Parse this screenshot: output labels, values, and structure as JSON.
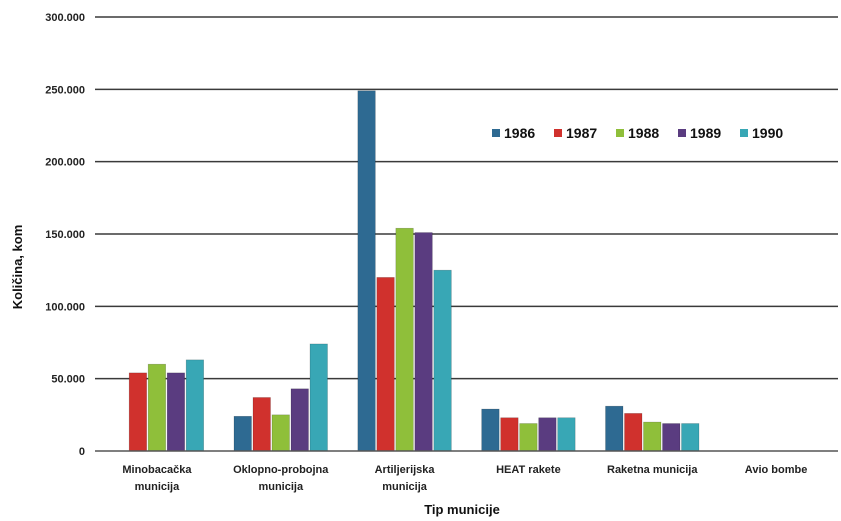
{
  "chart_data": {
    "type": "bar",
    "title": "",
    "xlabel": "Tip municije",
    "ylabel": "Količina, kom",
    "ylim": [
      0,
      300000
    ],
    "y_ticks": [
      "0",
      "50.000",
      "100.000",
      "150.000",
      "200.000",
      "250.000",
      "300.000"
    ],
    "y_tick_values": [
      0,
      50000,
      100000,
      150000,
      200000,
      250000,
      300000
    ],
    "categories": [
      [
        "Minobacačka",
        "municija"
      ],
      [
        "Oklopno-probojna",
        "municija"
      ],
      [
        "Artiljerijska",
        "municija"
      ],
      [
        "HEAT rakete"
      ],
      [
        "Raketna municija"
      ],
      [
        "Avio bombe"
      ]
    ],
    "legend_position": "top-right",
    "grid": true,
    "series": [
      {
        "name": "1986",
        "color": "#2e6a92",
        "values": [
          0,
          24000,
          249000,
          29000,
          31000,
          0
        ]
      },
      {
        "name": "1987",
        "color": "#d0312d",
        "values": [
          54000,
          37000,
          120000,
          23000,
          26000,
          0
        ]
      },
      {
        "name": "1988",
        "color": "#8fbf3a",
        "values": [
          60000,
          25000,
          154000,
          19000,
          20000,
          0
        ]
      },
      {
        "name": "1989",
        "color": "#5a3c80",
        "values": [
          54000,
          43000,
          151000,
          23000,
          19000,
          0
        ]
      },
      {
        "name": "1990",
        "color": "#38a7b5",
        "values": [
          63000,
          74000,
          125000,
          23000,
          19000,
          0
        ]
      }
    ]
  }
}
